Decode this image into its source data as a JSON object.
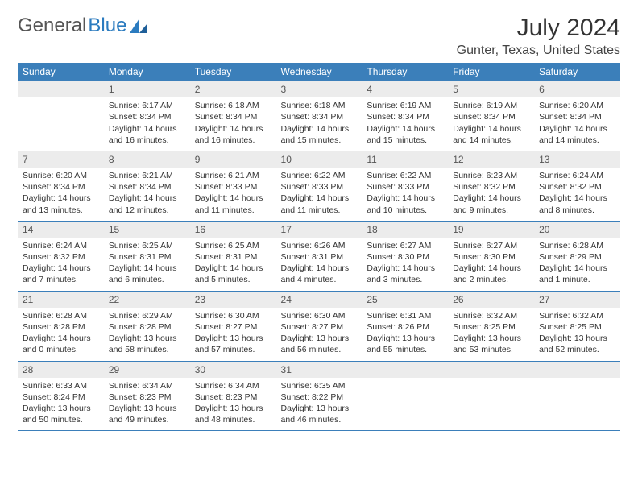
{
  "logo": {
    "text1": "General",
    "text2": "Blue"
  },
  "title": "July 2024",
  "location": "Gunter, Texas, United States",
  "colors": {
    "header_bg": "#3b7fba",
    "header_text": "#ffffff",
    "daynum_bg": "#ececec",
    "rule": "#3b7fba",
    "body_text": "#333333",
    "logo_gray": "#555555",
    "logo_blue": "#2b7bbf"
  },
  "day_headers": [
    "Sunday",
    "Monday",
    "Tuesday",
    "Wednesday",
    "Thursday",
    "Friday",
    "Saturday"
  ],
  "weeks": [
    [
      null,
      {
        "n": "1",
        "sunrise": "6:17 AM",
        "sunset": "8:34 PM",
        "daylight": "14 hours and 16 minutes."
      },
      {
        "n": "2",
        "sunrise": "6:18 AM",
        "sunset": "8:34 PM",
        "daylight": "14 hours and 16 minutes."
      },
      {
        "n": "3",
        "sunrise": "6:18 AM",
        "sunset": "8:34 PM",
        "daylight": "14 hours and 15 minutes."
      },
      {
        "n": "4",
        "sunrise": "6:19 AM",
        "sunset": "8:34 PM",
        "daylight": "14 hours and 15 minutes."
      },
      {
        "n": "5",
        "sunrise": "6:19 AM",
        "sunset": "8:34 PM",
        "daylight": "14 hours and 14 minutes."
      },
      {
        "n": "6",
        "sunrise": "6:20 AM",
        "sunset": "8:34 PM",
        "daylight": "14 hours and 14 minutes."
      }
    ],
    [
      {
        "n": "7",
        "sunrise": "6:20 AM",
        "sunset": "8:34 PM",
        "daylight": "14 hours and 13 minutes."
      },
      {
        "n": "8",
        "sunrise": "6:21 AM",
        "sunset": "8:34 PM",
        "daylight": "14 hours and 12 minutes."
      },
      {
        "n": "9",
        "sunrise": "6:21 AM",
        "sunset": "8:33 PM",
        "daylight": "14 hours and 11 minutes."
      },
      {
        "n": "10",
        "sunrise": "6:22 AM",
        "sunset": "8:33 PM",
        "daylight": "14 hours and 11 minutes."
      },
      {
        "n": "11",
        "sunrise": "6:22 AM",
        "sunset": "8:33 PM",
        "daylight": "14 hours and 10 minutes."
      },
      {
        "n": "12",
        "sunrise": "6:23 AM",
        "sunset": "8:32 PM",
        "daylight": "14 hours and 9 minutes."
      },
      {
        "n": "13",
        "sunrise": "6:24 AM",
        "sunset": "8:32 PM",
        "daylight": "14 hours and 8 minutes."
      }
    ],
    [
      {
        "n": "14",
        "sunrise": "6:24 AM",
        "sunset": "8:32 PM",
        "daylight": "14 hours and 7 minutes."
      },
      {
        "n": "15",
        "sunrise": "6:25 AM",
        "sunset": "8:31 PM",
        "daylight": "14 hours and 6 minutes."
      },
      {
        "n": "16",
        "sunrise": "6:25 AM",
        "sunset": "8:31 PM",
        "daylight": "14 hours and 5 minutes."
      },
      {
        "n": "17",
        "sunrise": "6:26 AM",
        "sunset": "8:31 PM",
        "daylight": "14 hours and 4 minutes."
      },
      {
        "n": "18",
        "sunrise": "6:27 AM",
        "sunset": "8:30 PM",
        "daylight": "14 hours and 3 minutes."
      },
      {
        "n": "19",
        "sunrise": "6:27 AM",
        "sunset": "8:30 PM",
        "daylight": "14 hours and 2 minutes."
      },
      {
        "n": "20",
        "sunrise": "6:28 AM",
        "sunset": "8:29 PM",
        "daylight": "14 hours and 1 minute."
      }
    ],
    [
      {
        "n": "21",
        "sunrise": "6:28 AM",
        "sunset": "8:28 PM",
        "daylight": "14 hours and 0 minutes."
      },
      {
        "n": "22",
        "sunrise": "6:29 AM",
        "sunset": "8:28 PM",
        "daylight": "13 hours and 58 minutes."
      },
      {
        "n": "23",
        "sunrise": "6:30 AM",
        "sunset": "8:27 PM",
        "daylight": "13 hours and 57 minutes."
      },
      {
        "n": "24",
        "sunrise": "6:30 AM",
        "sunset": "8:27 PM",
        "daylight": "13 hours and 56 minutes."
      },
      {
        "n": "25",
        "sunrise": "6:31 AM",
        "sunset": "8:26 PM",
        "daylight": "13 hours and 55 minutes."
      },
      {
        "n": "26",
        "sunrise": "6:32 AM",
        "sunset": "8:25 PM",
        "daylight": "13 hours and 53 minutes."
      },
      {
        "n": "27",
        "sunrise": "6:32 AM",
        "sunset": "8:25 PM",
        "daylight": "13 hours and 52 minutes."
      }
    ],
    [
      {
        "n": "28",
        "sunrise": "6:33 AM",
        "sunset": "8:24 PM",
        "daylight": "13 hours and 50 minutes."
      },
      {
        "n": "29",
        "sunrise": "6:34 AM",
        "sunset": "8:23 PM",
        "daylight": "13 hours and 49 minutes."
      },
      {
        "n": "30",
        "sunrise": "6:34 AM",
        "sunset": "8:23 PM",
        "daylight": "13 hours and 48 minutes."
      },
      {
        "n": "31",
        "sunrise": "6:35 AM",
        "sunset": "8:22 PM",
        "daylight": "13 hours and 46 minutes."
      },
      null,
      null,
      null
    ]
  ]
}
